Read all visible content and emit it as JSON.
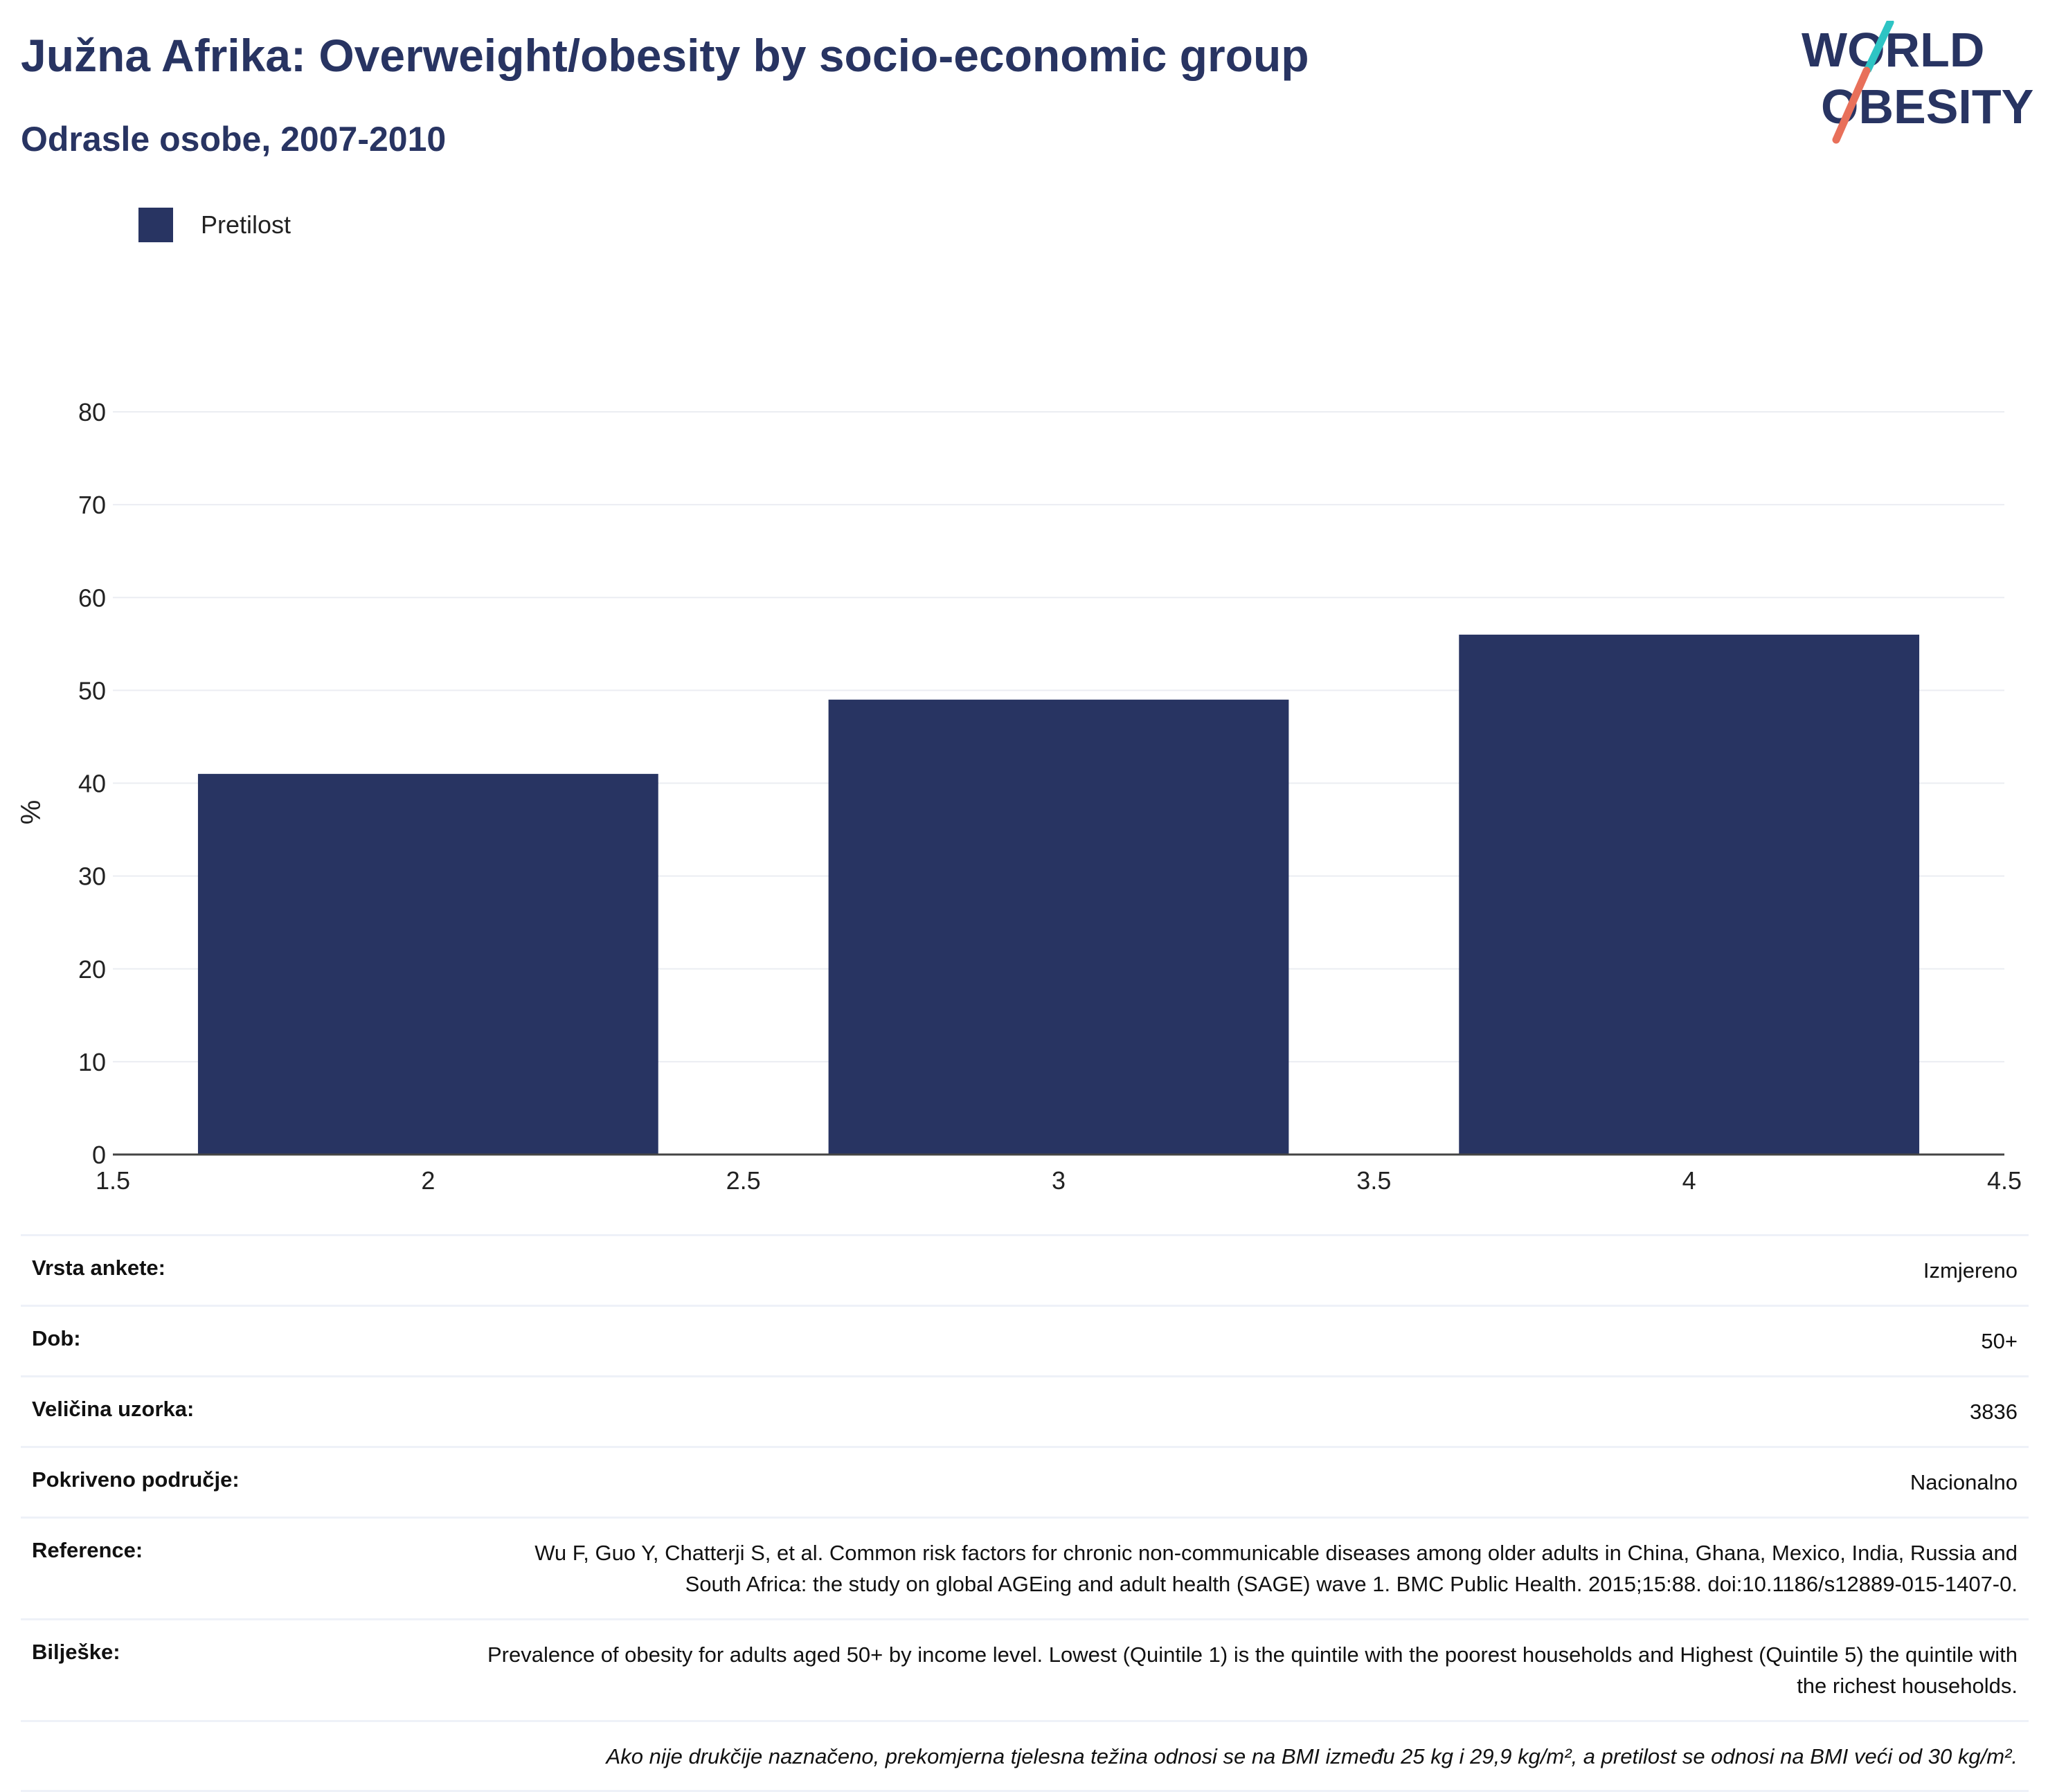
{
  "header": {
    "title": "Južna Afrika: Overweight/obesity by socio-economic group",
    "subtitle": "Odrasle osobe, 2007-2010",
    "logo_line1": "WORLD",
    "logo_line2": "OBESITY"
  },
  "legend": {
    "label": "Pretilost"
  },
  "colors": {
    "bar": "#283462",
    "grid": "#ebedf2",
    "axis": "#444444",
    "logo_teal": "#2ec4c4",
    "logo_coral": "#e8705a"
  },
  "chart_data": {
    "type": "bar",
    "series": [
      {
        "name": "Pretilost",
        "x": [
          2,
          3,
          4
        ],
        "values": [
          41,
          49,
          56
        ]
      }
    ],
    "bar_width": 0.73,
    "xlim": [
      1.5,
      4.5
    ],
    "ylim": [
      0,
      80
    ],
    "xticks": [
      "1.5",
      "2",
      "2.5",
      "3",
      "3.5",
      "4",
      "4.5"
    ],
    "yticks": [
      "0",
      "10",
      "20",
      "30",
      "40",
      "50",
      "60",
      "70",
      "80"
    ],
    "ylabel": "%",
    "xlabel": "",
    "grid": true
  },
  "meta": {
    "survey_type": {
      "key": "Vrsta ankete:",
      "value": "Izmjereno"
    },
    "age": {
      "key": "Dob:",
      "value": "50+"
    },
    "sample_size": {
      "key": "Veličina uzorka:",
      "value": "3836"
    },
    "coverage": {
      "key": "Pokriveno područje:",
      "value": "Nacionalno"
    },
    "reference": {
      "key": "Reference:",
      "value": "Wu F, Guo Y, Chatterji S, et al. Common risk factors for chronic non-communicable diseases among older adults in China, Ghana, Mexico, India, Russia and South Africa: the study on global AGEing and adult health (SAGE) wave 1. BMC Public Health. 2015;15:88. doi:10.1186/s12889-015-1407-0."
    },
    "notes": {
      "key": "Bilješke:",
      "value": "Prevalence of obesity for adults aged 50+ by income level. Lowest (Quintile 1) is the quintile with the poorest households and Highest (Quintile 5) the quintile with the richest households."
    },
    "footnote": "Ako nije drukčije naznačeno, prekomjerna tjelesna težina odnosi se na BMI između 25 kg i 29,9 kg/m², a pretilost se odnosi na BMI veći od 30 kg/m²."
  }
}
